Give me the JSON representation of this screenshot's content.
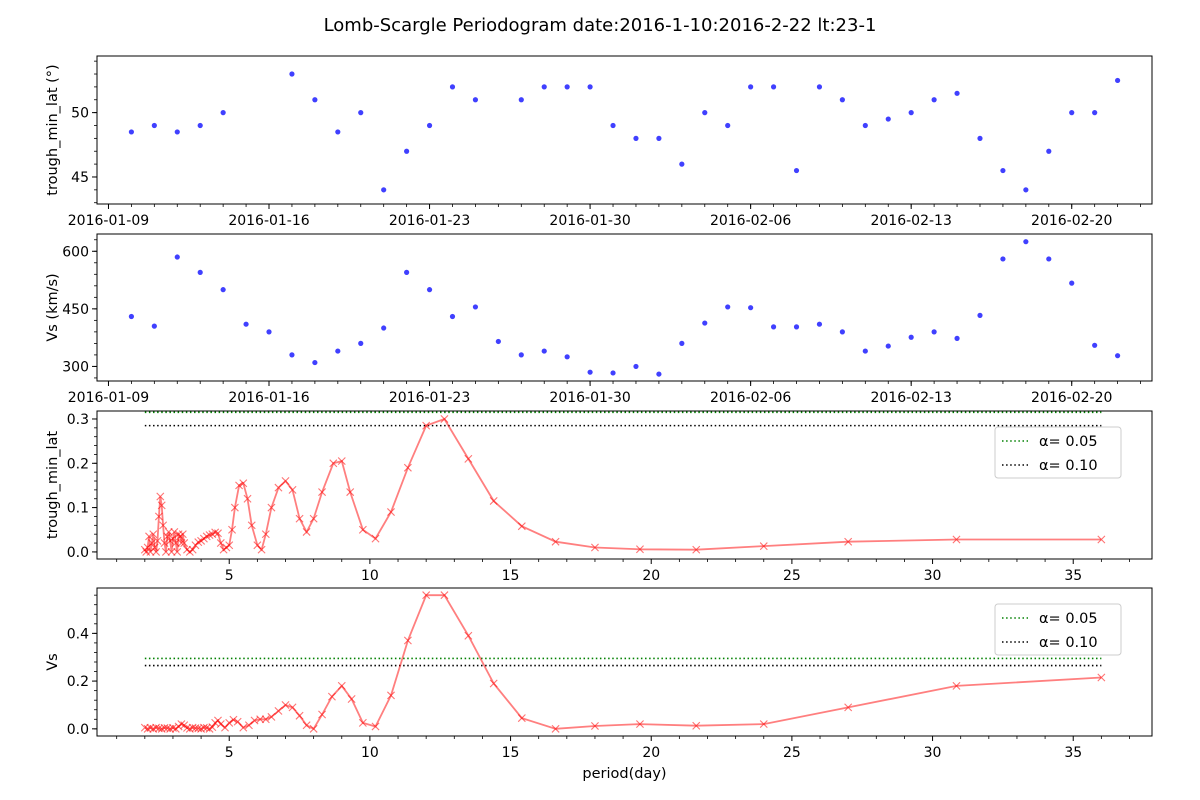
{
  "figure_title": "Lomb-Scargle Periodogram    date:2016-1-10:2016-2-22   lt:23-1",
  "colors": {
    "scatter": "#0000ff",
    "periodogram": "#ff0000",
    "alpha05": "#008000",
    "alpha10": "#000000"
  },
  "chart_data": [
    {
      "id": "panel1",
      "type": "scatter",
      "ylabel": "trough_min_lat (°)",
      "xlabel": "",
      "x_is_date": true,
      "xlim": [
        "2016-01-08T12:00",
        "2016-02-23T12:00"
      ],
      "ylim": [
        42.9,
        54.4
      ],
      "xtick_labels": [
        "2016-01-09",
        "2016-01-16",
        "2016-01-23",
        "2016-01-30",
        "2016-02-06",
        "2016-02-13",
        "2016-02-20"
      ],
      "ytick_labels": [
        "45",
        "50"
      ],
      "series": [
        {
          "x": [
            "2016-01-10",
            "2016-01-11",
            "2016-01-12",
            "2016-01-13",
            "2016-01-14",
            "2016-01-17",
            "2016-01-18",
            "2016-01-19",
            "2016-01-20",
            "2016-01-21",
            "2016-01-22",
            "2016-01-23",
            "2016-01-24",
            "2016-01-25",
            "2016-01-27",
            "2016-01-28",
            "2016-01-29",
            "2016-01-30",
            "2016-01-31",
            "2016-02-01",
            "2016-02-02",
            "2016-02-03",
            "2016-02-04",
            "2016-02-05",
            "2016-02-06",
            "2016-02-07",
            "2016-02-08",
            "2016-02-09",
            "2016-02-10",
            "2016-02-11",
            "2016-02-12",
            "2016-02-13",
            "2016-02-14",
            "2016-02-15",
            "2016-02-16",
            "2016-02-17",
            "2016-02-18",
            "2016-02-19",
            "2016-02-20",
            "2016-02-21",
            "2016-02-22"
          ],
          "y": [
            48.5,
            49.0,
            48.5,
            49.0,
            50.0,
            53.0,
            51.0,
            48.5,
            50.0,
            44.0,
            47.0,
            49.0,
            52.0,
            51.0,
            51.0,
            52.0,
            52.0,
            52.0,
            49.0,
            48.0,
            48.0,
            46.0,
            50.0,
            49.0,
            52.0,
            52.0,
            45.5,
            52.0,
            51.0,
            49.0,
            49.5,
            50.0,
            51.0,
            51.5,
            48.0,
            45.5,
            44.0,
            47.0,
            50.0,
            50.0,
            52.5
          ]
        }
      ]
    },
    {
      "id": "panel2",
      "type": "scatter",
      "ylabel": "Vs (km/s)",
      "xlabel": "",
      "x_is_date": true,
      "xlim": [
        "2016-01-08T12:00",
        "2016-02-23T12:00"
      ],
      "ylim": [
        262,
        645
      ],
      "xtick_labels": [
        "2016-01-09",
        "2016-01-16",
        "2016-01-23",
        "2016-01-30",
        "2016-02-06",
        "2016-02-13",
        "2016-02-20"
      ],
      "ytick_labels": [
        "300",
        "450",
        "600"
      ],
      "series": [
        {
          "x": [
            "2016-01-10",
            "2016-01-11",
            "2016-01-12",
            "2016-01-13",
            "2016-01-14",
            "2016-01-15",
            "2016-01-16",
            "2016-01-17",
            "2016-01-18",
            "2016-01-19",
            "2016-01-20",
            "2016-01-21",
            "2016-01-22",
            "2016-01-23",
            "2016-01-24",
            "2016-01-25",
            "2016-01-26",
            "2016-01-27",
            "2016-01-28",
            "2016-01-29",
            "2016-01-30",
            "2016-01-31",
            "2016-02-01",
            "2016-02-02",
            "2016-02-03",
            "2016-02-04",
            "2016-02-05",
            "2016-02-06",
            "2016-02-07",
            "2016-02-08",
            "2016-02-09",
            "2016-02-10",
            "2016-02-11",
            "2016-02-12",
            "2016-02-13",
            "2016-02-14",
            "2016-02-15",
            "2016-02-16",
            "2016-02-17",
            "2016-02-18",
            "2016-02-19",
            "2016-02-20",
            "2016-02-21",
            "2016-02-22"
          ],
          "y": [
            430,
            405,
            585,
            545,
            500,
            410,
            390,
            330,
            310,
            340,
            360,
            400,
            545,
            500,
            430,
            455,
            365,
            330,
            340,
            325,
            285,
            283,
            300,
            280,
            360,
            413,
            455,
            453,
            403,
            403,
            410,
            390,
            340,
            353,
            376,
            390,
            373,
            433,
            580,
            625,
            580,
            517,
            355,
            328
          ]
        }
      ]
    },
    {
      "id": "panel3",
      "type": "line",
      "ylabel": "trough_min_lat",
      "xlabel": "",
      "xlim": [
        0.3,
        37.8
      ],
      "ylim": [
        -0.016,
        0.318
      ],
      "xtick_labels": [
        "5",
        "10",
        "15",
        "20",
        "25",
        "30",
        "35"
      ],
      "ytick_labels": [
        "0.0",
        "0.1",
        "0.2",
        "0.3"
      ],
      "alpha_05": 0.315,
      "alpha_10": 0.285,
      "legend": [
        "α= 0.05",
        "α= 0.10"
      ],
      "legend_loc": "upper right",
      "series": [
        {
          "x": [
            2.0,
            2.05,
            2.1,
            2.15,
            2.2,
            2.25,
            2.3,
            2.35,
            2.4,
            2.45,
            2.5,
            2.55,
            2.6,
            2.65,
            2.7,
            2.75,
            2.8,
            2.85,
            2.9,
            2.95,
            3.0,
            3.05,
            3.1,
            3.15,
            3.2,
            3.25,
            3.3,
            3.35,
            3.4,
            3.5,
            3.6,
            3.7,
            3.8,
            3.9,
            4.0,
            4.1,
            4.2,
            4.3,
            4.4,
            4.5,
            4.6,
            4.7,
            4.8,
            4.9,
            5.0,
            5.1,
            5.2,
            5.35,
            5.5,
            5.65,
            5.8,
            6.0,
            6.15,
            6.3,
            6.5,
            6.75,
            7.0,
            7.25,
            7.5,
            7.75,
            8.0,
            8.3,
            8.7,
            9.0,
            9.3,
            9.75,
            10.2,
            10.75,
            11.35,
            12.0,
            12.65,
            13.5,
            14.4,
            15.4,
            16.6,
            18.0,
            19.6,
            21.6,
            24.0,
            27.0,
            30.85,
            36.0
          ],
          "y": [
            0.005,
            0.0,
            0.01,
            0.035,
            0.0,
            0.02,
            0.04,
            0.01,
            0.0,
            0.025,
            0.08,
            0.125,
            0.105,
            0.06,
            0.02,
            0.0,
            0.035,
            0.045,
            0.025,
            0.0,
            0.03,
            0.045,
            0.02,
            0.0,
            0.04,
            0.035,
            0.02,
            0.04,
            0.02,
            0.005,
            0.0,
            0.005,
            0.015,
            0.022,
            0.025,
            0.03,
            0.035,
            0.038,
            0.04,
            0.044,
            0.042,
            0.02,
            0.005,
            0.01,
            0.015,
            0.05,
            0.1,
            0.15,
            0.155,
            0.12,
            0.06,
            0.015,
            0.005,
            0.04,
            0.1,
            0.145,
            0.16,
            0.14,
            0.075,
            0.045,
            0.075,
            0.135,
            0.2,
            0.205,
            0.135,
            0.05,
            0.03,
            0.09,
            0.19,
            0.285,
            0.3,
            0.21,
            0.115,
            0.058,
            0.023,
            0.01,
            0.006,
            0.005,
            0.013,
            0.023,
            0.028,
            0.028
          ]
        }
      ]
    },
    {
      "id": "panel4",
      "type": "line",
      "ylabel": "Vs",
      "xlabel": "period(day)",
      "xlim": [
        0.3,
        37.8
      ],
      "ylim": [
        -0.03,
        0.59
      ],
      "xtick_labels": [
        "5",
        "10",
        "15",
        "20",
        "25",
        "30",
        "35"
      ],
      "ytick_labels": [
        "0.0",
        "0.2",
        "0.4"
      ],
      "alpha_05": 0.295,
      "alpha_10": 0.265,
      "legend": [
        "α= 0.05",
        "α= 0.10"
      ],
      "legend_loc": "upper right",
      "series": [
        {
          "x": [
            2.0,
            2.1,
            2.2,
            2.3,
            2.4,
            2.5,
            2.6,
            2.7,
            2.8,
            2.9,
            3.0,
            3.1,
            3.2,
            3.3,
            3.4,
            3.5,
            3.6,
            3.7,
            3.8,
            3.9,
            4.0,
            4.1,
            4.2,
            4.3,
            4.4,
            4.5,
            4.6,
            4.7,
            4.85,
            5.0,
            5.15,
            5.3,
            5.5,
            5.7,
            5.9,
            6.1,
            6.3,
            6.5,
            6.75,
            7.0,
            7.25,
            7.5,
            7.75,
            8.0,
            8.3,
            8.65,
            9.0,
            9.35,
            9.75,
            10.2,
            10.75,
            11.35,
            12.0,
            12.65,
            13.5,
            14.4,
            15.4,
            16.6,
            18.0,
            19.6,
            21.6,
            24.0,
            27.0,
            30.85,
            36.0
          ],
          "y": [
            0.005,
            0.0,
            0.004,
            0.0,
            0.005,
            0.002,
            0.0,
            0.004,
            0.003,
            0.0,
            0.004,
            0.0,
            0.01,
            0.02,
            0.015,
            0.004,
            0.0,
            0.005,
            0.003,
            0.002,
            0.0,
            0.005,
            0.004,
            0.0,
            0.007,
            0.025,
            0.035,
            0.02,
            0.005,
            0.025,
            0.038,
            0.03,
            0.005,
            0.015,
            0.035,
            0.04,
            0.04,
            0.05,
            0.075,
            0.1,
            0.09,
            0.055,
            0.015,
            0.0,
            0.06,
            0.135,
            0.18,
            0.125,
            0.025,
            0.01,
            0.14,
            0.37,
            0.56,
            0.56,
            0.39,
            0.19,
            0.045,
            0.0,
            0.012,
            0.02,
            0.013,
            0.02,
            0.09,
            0.18,
            0.215
          ]
        }
      ]
    }
  ]
}
